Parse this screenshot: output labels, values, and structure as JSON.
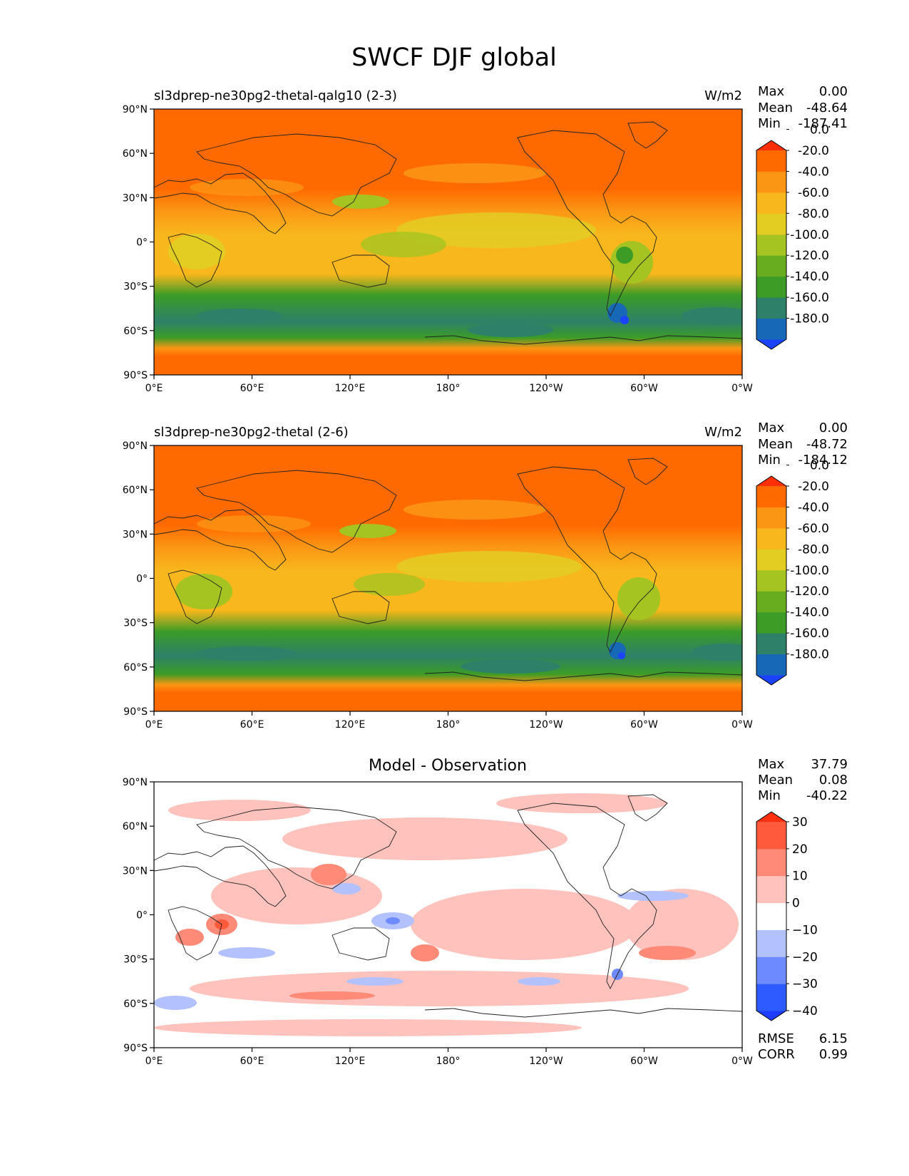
{
  "figure": {
    "title": "SWCF DJF global"
  },
  "panels": [
    {
      "id": "test",
      "left_title": "sl3dprep-ne30pg2-thetal-qalg10 (2-3)",
      "center_title": "",
      "units": "W/m2",
      "stats": [
        {
          "label": "Max",
          "value": "0.00"
        },
        {
          "label": "Mean",
          "value": "-48.64"
        },
        {
          "label": "Min",
          "value": "-187.41"
        }
      ],
      "colorbar": {
        "colors": [
          "#1a42ff",
          "#1769b8",
          "#2e8068",
          "#3c9c26",
          "#67ad1f",
          "#a5c421",
          "#e3cd23",
          "#f8b71c",
          "#fb9514",
          "#ff6a00",
          "#ff2f05"
        ],
        "ticks": [
          "-180.0",
          "-160.0",
          "-140.0",
          "-120.0",
          "-100.0",
          "-80.0",
          "-60.0",
          "-40.0",
          "-20.0",
          "0.0"
        ]
      },
      "bottom_stats": []
    },
    {
      "id": "ref",
      "left_title": "sl3dprep-ne30pg2-thetal (2-6)",
      "center_title": "",
      "units": "W/m2",
      "stats": [
        {
          "label": "Max",
          "value": "0.00"
        },
        {
          "label": "Mean",
          "value": "-48.72"
        },
        {
          "label": "Min",
          "value": "-184.12"
        }
      ],
      "colorbar": {
        "colors": [
          "#1a42ff",
          "#1769b8",
          "#2e8068",
          "#3c9c26",
          "#67ad1f",
          "#a5c421",
          "#e3cd23",
          "#f8b71c",
          "#fb9514",
          "#ff6a00",
          "#ff2f05"
        ],
        "ticks": [
          "-180.0",
          "-160.0",
          "-140.0",
          "-120.0",
          "-100.0",
          "-80.0",
          "-60.0",
          "-40.0",
          "-20.0",
          "0.0"
        ]
      },
      "bottom_stats": []
    },
    {
      "id": "diff",
      "left_title": "",
      "center_title": "Model - Observation",
      "units": "",
      "stats": [
        {
          "label": "Max",
          "value": "37.79"
        },
        {
          "label": "Mean",
          "value": "0.08"
        },
        {
          "label": "Min",
          "value": "-40.22"
        }
      ],
      "colorbar": {
        "colors": [
          "#1e3cff",
          "#2e5bff",
          "#6e8aff",
          "#b4c1ff",
          "#ffffff",
          "#ffc2bc",
          "#ff8a78",
          "#ff5a3c",
          "#ff3010"
        ],
        "ticks": [
          "−40",
          "−30",
          "−20",
          "−10",
          "0",
          "10",
          "20",
          "30"
        ]
      },
      "bottom_stats": [
        {
          "label": "RMSE",
          "value": "6.15"
        },
        {
          "label": "CORR",
          "value": "0.99"
        }
      ]
    }
  ],
  "axes": {
    "lat_labels": [
      "90°S",
      "60°S",
      "30°S",
      "0°",
      "30°N",
      "60°N",
      "90°N"
    ],
    "lon_labels": [
      "0°E",
      "60°E",
      "120°E",
      "180°",
      "120°W",
      "60°W",
      "0°W"
    ]
  }
}
